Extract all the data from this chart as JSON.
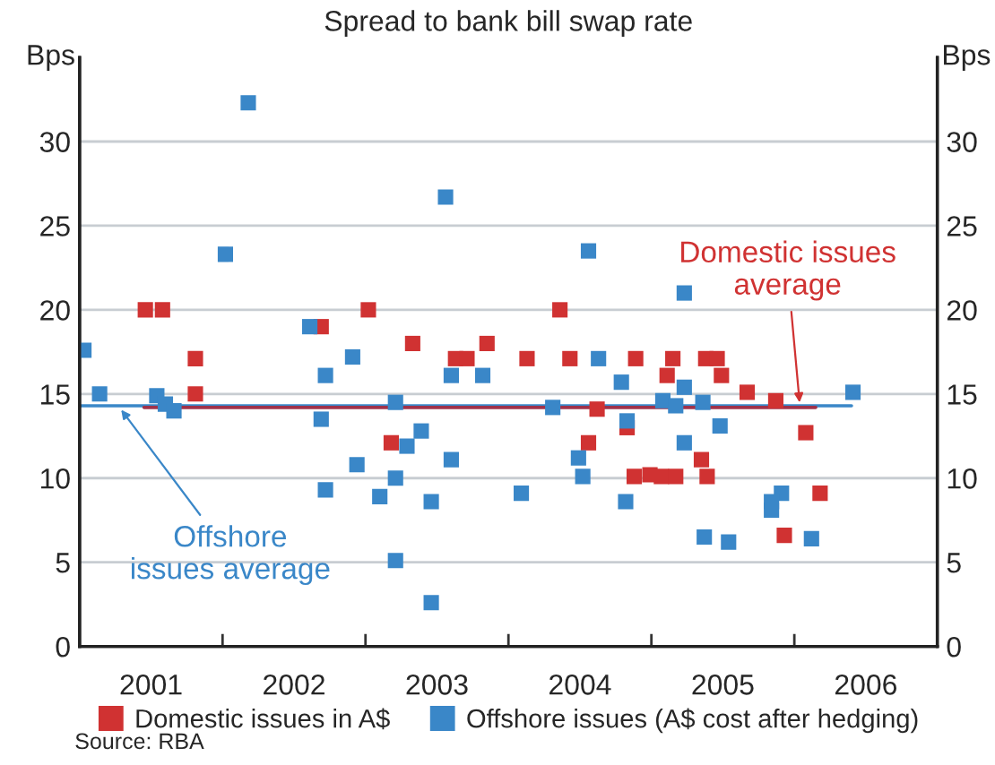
{
  "chart_data": {
    "type": "scatter",
    "title": "Spread to bank bill swap rate",
    "ylabel": "Bps",
    "y2label": "Bps",
    "xlim": [
      2001,
      2007
    ],
    "xticks": [
      {
        "value": 2002,
        "label": null
      },
      {
        "value": 2003,
        "label": null
      },
      {
        "value": 2004,
        "label": null
      },
      {
        "value": 2005,
        "label": null
      },
      {
        "value": 2006,
        "label": null
      },
      {
        "value": 2001.5,
        "label": "2001"
      },
      {
        "value": 2002.5,
        "label": "2002"
      },
      {
        "value": 2003.5,
        "label": "2003"
      },
      {
        "value": 2004.5,
        "label": "2004"
      },
      {
        "value": 2005.5,
        "label": "2005"
      },
      {
        "value": 2006.5,
        "label": "2006"
      }
    ],
    "ylim": [
      0,
      35
    ],
    "yticks": [
      0,
      5,
      10,
      15,
      20,
      25,
      30
    ],
    "y2lim": [
      0,
      35
    ],
    "y2ticks": [
      0,
      5,
      10,
      15,
      20,
      25,
      30
    ],
    "grid": "y",
    "marker": "square",
    "legend": "bottom",
    "series": [
      {
        "name": "Domestic issues in A$",
        "color": "#d03232",
        "x": [
          2001.46,
          2001.58,
          2001.81,
          2001.81,
          2002.69,
          2003.02,
          2003.33,
          2003.63,
          2003.71,
          2003.85,
          2004.13,
          2004.36,
          2004.43,
          2004.89,
          2004.62,
          2004.83,
          2003.18,
          2004.56,
          2004.88,
          2004.99,
          2005.15,
          2005.11,
          2005.38,
          2005.46,
          2005.49,
          2005.67,
          2005.87,
          2006.08,
          2005.07,
          2005.17,
          2005.35,
          2005.39,
          2006.18,
          2005.93
        ],
        "values": [
          20,
          20,
          17.1,
          15.0,
          19.0,
          20,
          18.0,
          17.1,
          17.1,
          18.0,
          17.1,
          20,
          17.1,
          17.1,
          14.1,
          13.0,
          12.1,
          12.1,
          10.1,
          10.2,
          17.1,
          16.1,
          17.1,
          17.1,
          16.1,
          15.1,
          14.6,
          12.7,
          10.1,
          10.1,
          11.1,
          10.1,
          9.1,
          6.6
        ]
      },
      {
        "name": "Offshore issues (A$ cost after hedging)",
        "color": "#3a87c8",
        "x": [
          2002.18,
          2002.02,
          2001.03,
          2001.14,
          2001.54,
          2001.6,
          2001.66,
          2002.61,
          2002.72,
          2002.91,
          2002.69,
          2002.94,
          2002.72,
          2003.56,
          2004.56,
          2003.6,
          2003.82,
          2004.63,
          2004.79,
          2003.21,
          2004.31,
          2004.83,
          2003.39,
          2003.29,
          2003.6,
          2004.49,
          2003.21,
          2004.52,
          2003.1,
          2003.46,
          2004.09,
          2004.82,
          2003.21,
          2003.46,
          2005.23,
          2005.23,
          2005.08,
          2005.17,
          2005.36,
          2005.48,
          2005.23,
          2005.91,
          2005.84,
          2005.84,
          2006.41,
          2005.37,
          2005.54,
          2006.12
        ],
        "values": [
          32.3,
          23.3,
          17.6,
          15.0,
          14.9,
          14.4,
          14.0,
          19.0,
          16.1,
          17.2,
          13.5,
          10.8,
          9.3,
          26.7,
          23.5,
          16.1,
          16.1,
          17.1,
          15.7,
          14.5,
          14.2,
          13.4,
          12.8,
          11.9,
          11.1,
          11.2,
          10.0,
          10.1,
          8.9,
          8.6,
          9.1,
          8.6,
          5.1,
          2.6,
          21.0,
          15.4,
          14.6,
          14.3,
          14.5,
          13.1,
          12.1,
          9.1,
          8.6,
          8.1,
          15.1,
          6.5,
          6.2,
          6.4
        ]
      },
      {
        "type": "line",
        "marker": "none",
        "color": "#3a87c8",
        "x": [
          2001.0,
          2006.4
        ],
        "values": [
          14.3,
          14.3
        ]
      },
      {
        "type": "line",
        "marker": "none",
        "color": "#a0324a",
        "x": [
          2001.45,
          2006.15
        ],
        "values": [
          14.2,
          14.2
        ]
      }
    ],
    "annotations": [
      {
        "text": "Offshore issues average",
        "x": 2001.27,
        "y": 14.3
      },
      {
        "text": "Domestic issues average",
        "x": 2006.04,
        "y": 14.2
      },
      "Source: RBA"
    ]
  }
}
